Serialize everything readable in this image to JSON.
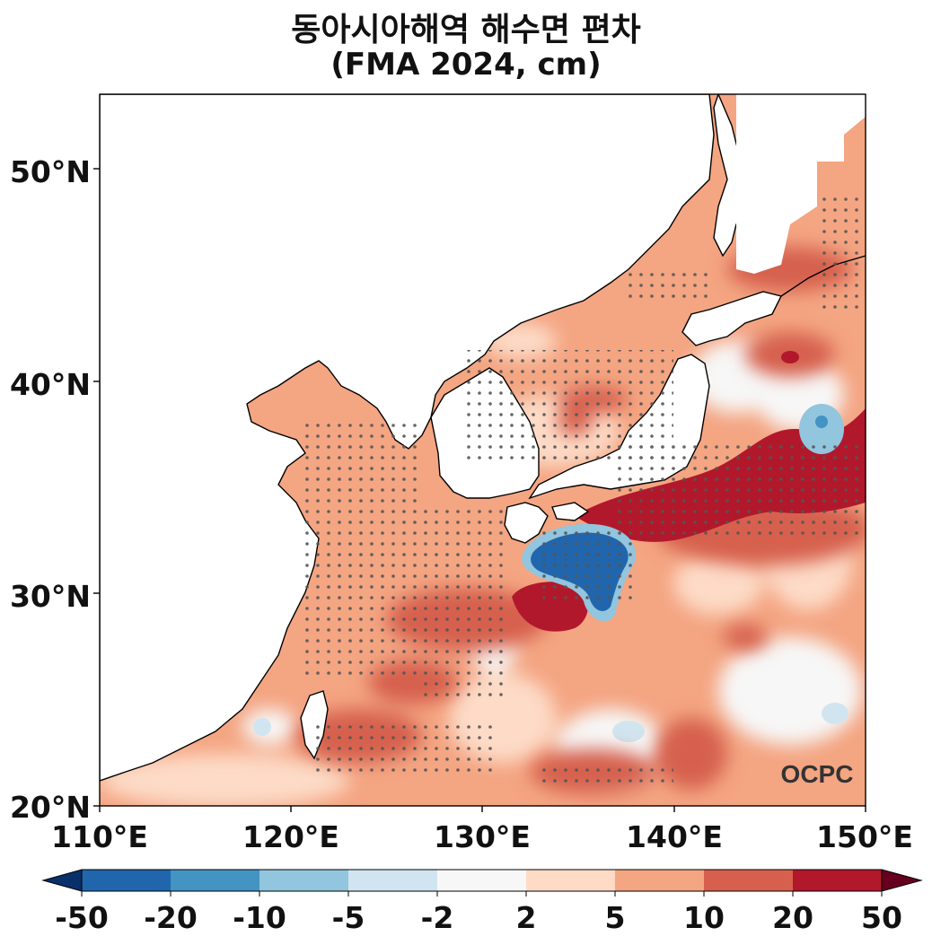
{
  "title": "동아시아해역 해수면 편차",
  "subtitle": "(FMA 2024, cm)",
  "watermark": "OCPC",
  "map": {
    "lon_range": [
      110,
      150
    ],
    "lat_range": [
      20,
      53.5
    ],
    "lat_ticks": [
      "20°N",
      "30°N",
      "40°N",
      "50°N"
    ],
    "lon_ticks": [
      "110°E",
      "120°E",
      "130°E",
      "140°E",
      "150°E"
    ],
    "stippling": "significant anomalies marked with dots"
  },
  "colorbar": {
    "labels": [
      "-50",
      "-20",
      "-10",
      "-5",
      "-2",
      "2",
      "5",
      "10",
      "20",
      "50"
    ],
    "colors": [
      "#08306b",
      "#2166ac",
      "#4393c3",
      "#92c5de",
      "#d1e5f0",
      "#f7f7f7",
      "#fddbc7",
      "#f4a582",
      "#d6604d",
      "#b2182b",
      "#67001f"
    ],
    "extend": "both"
  }
}
